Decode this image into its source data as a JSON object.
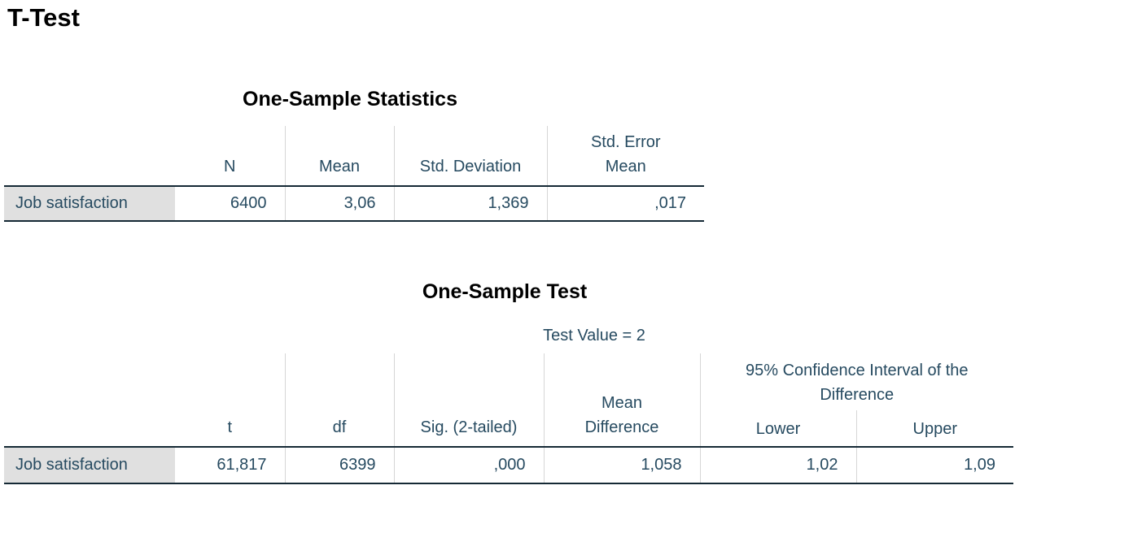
{
  "title": "T-Test",
  "statistics_table": {
    "title": "One-Sample Statistics",
    "columns": [
      "N",
      "Mean",
      "Std. Deviation",
      "Std. Error Mean"
    ],
    "rows": [
      [
        "Job satisfaction",
        "6400",
        "3,06",
        "1,369",
        ",017"
      ]
    ]
  },
  "test_table": {
    "title": "One-Sample Test",
    "test_value": "Test Value = 2",
    "columns": [
      "t",
      "df",
      "Sig. (2-tailed)",
      "Mean Difference"
    ],
    "ci_header": "95% Confidence Interval of the Difference",
    "ci_columns": [
      "Lower",
      "Upper"
    ],
    "rows": [
      [
        "Job satisfaction",
        "61,817",
        "6399",
        ",000",
        "1,058",
        "1,02",
        "1,09"
      ]
    ]
  }
}
